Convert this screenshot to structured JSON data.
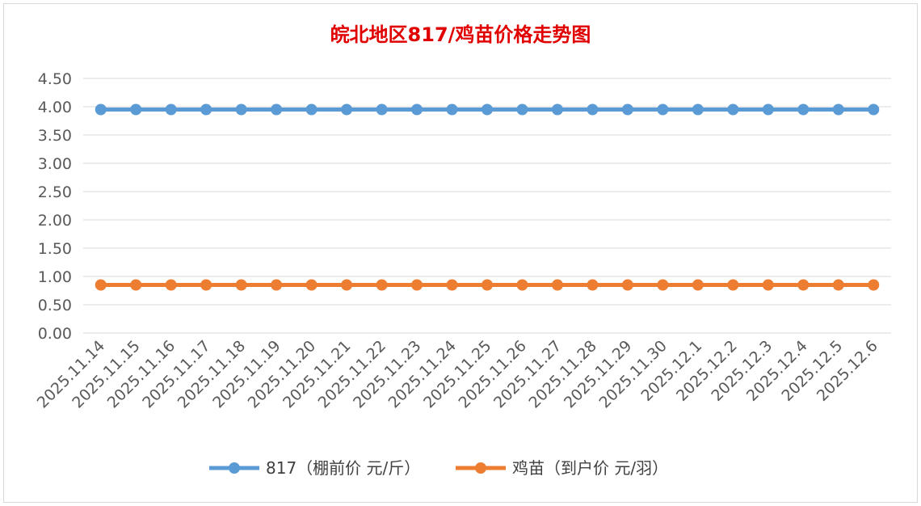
{
  "chart_data": {
    "type": "line",
    "title": "皖北地区817/鸡苗价格走势图",
    "categories": [
      "2025.11.14",
      "2025.11.15",
      "2025.11.16",
      "2025.11.17",
      "2025.11.18",
      "2025.11.19",
      "2025.11.20",
      "2025.11.21",
      "2025.11.22",
      "2025.11.23",
      "2025.11.24",
      "2025.11.25",
      "2025.11.26",
      "2025.11.27",
      "2025.11.28",
      "2025.11.29",
      "2025.11.30",
      "2025.12.1",
      "2025.12.2",
      "2025.12.3",
      "2025.12.4",
      "2025.12.5",
      "2025.12.6"
    ],
    "y_ticks": [
      "0.00",
      "0.50",
      "1.00",
      "1.50",
      "2.00",
      "2.50",
      "3.00",
      "3.50",
      "4.00",
      "4.50"
    ],
    "ylim": [
      0,
      4.5
    ],
    "grid": true,
    "legend": "bottom",
    "series": [
      {
        "name": "817（棚前价 元/斤）",
        "color": "#5b9bd5",
        "values": [
          3.95,
          3.95,
          3.95,
          3.95,
          3.95,
          3.95,
          3.95,
          3.95,
          3.95,
          3.95,
          3.95,
          3.95,
          3.95,
          3.95,
          3.95,
          3.95,
          3.95,
          3.95,
          3.95,
          3.95,
          3.95,
          3.95,
          3.95
        ]
      },
      {
        "name": "鸡苗（到户价 元/羽）",
        "color": "#ed7d31",
        "values": [
          0.85,
          0.85,
          0.85,
          0.85,
          0.85,
          0.85,
          0.85,
          0.85,
          0.85,
          0.85,
          0.85,
          0.85,
          0.85,
          0.85,
          0.85,
          0.85,
          0.85,
          0.85,
          0.85,
          0.85,
          0.85,
          0.85,
          0.85
        ]
      }
    ]
  }
}
